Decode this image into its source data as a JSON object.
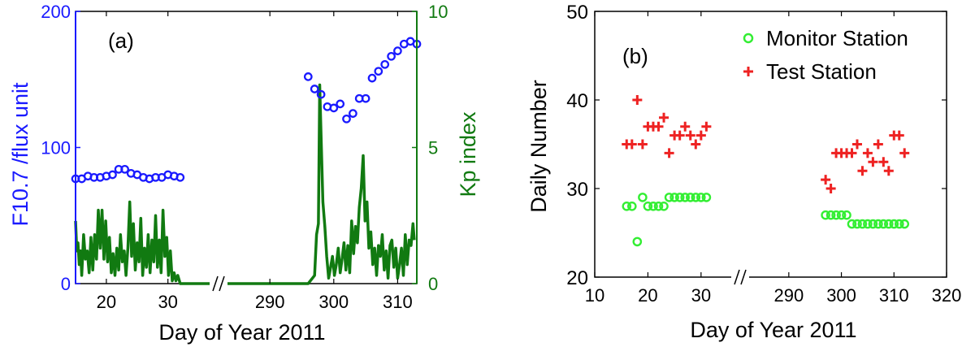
{
  "figure": {
    "colors": {
      "f107": "#1a1aff",
      "kp": "#117a11",
      "monitor": "#33ee33",
      "test": "#ee2222",
      "axis": "#000000"
    }
  },
  "chart_data": [
    {
      "type": "line",
      "panel_label": "(a)",
      "xlabel": "Day of Year 2011",
      "ylabel_left": "F10.7 /flux unit",
      "ylabel_right": "Kp index",
      "x_segments": [
        {
          "range": [
            15,
            34
          ],
          "ticks": [
            20,
            30
          ]
        },
        {
          "range": [
            284,
            313
          ],
          "ticks": [
            290,
            300,
            310
          ]
        }
      ],
      "ylim_left": [
        0,
        200
      ],
      "yticks_left": [
        "0",
        "100",
        "200"
      ],
      "ylim_right": [
        0,
        10
      ],
      "yticks_right": [
        "0",
        "5",
        "10"
      ],
      "series": [
        {
          "axis": "left",
          "style": "circles",
          "points": [
            [
              15,
              77
            ],
            [
              16,
              77
            ],
            [
              17,
              79
            ],
            [
              18,
              78
            ],
            [
              19,
              78
            ],
            [
              20,
              79
            ],
            [
              21,
              80
            ],
            [
              22,
              84
            ],
            [
              23,
              84
            ],
            [
              24,
              81
            ],
            [
              25,
              80
            ],
            [
              26,
              78
            ],
            [
              27,
              77
            ],
            [
              28,
              78
            ],
            [
              29,
              78
            ],
            [
              30,
              80
            ],
            [
              31,
              79
            ],
            [
              32,
              78
            ],
            [
              296,
              152
            ],
            [
              297,
              143
            ],
            [
              298,
              139
            ],
            [
              299,
              130
            ],
            [
              300,
              129
            ],
            [
              301,
              132
            ],
            [
              302,
              121
            ],
            [
              303,
              125
            ],
            [
              304,
              136
            ],
            [
              305,
              136
            ],
            [
              306,
              151
            ],
            [
              307,
              156
            ],
            [
              308,
              161
            ],
            [
              309,
              167
            ],
            [
              310,
              171
            ],
            [
              311,
              176
            ],
            [
              312,
              178
            ],
            [
              313,
              176
            ]
          ]
        },
        {
          "axis": "right",
          "style": "line",
          "points": [
            [
              15,
              2.3
            ],
            [
              15.2,
              1.2
            ],
            [
              15.4,
              1.5
            ],
            [
              15.6,
              0.7
            ],
            [
              15.8,
              1.2
            ],
            [
              16,
              0.3
            ],
            [
              16.3,
              1.8
            ],
            [
              16.6,
              0.9
            ],
            [
              16.9,
              1.2
            ],
            [
              17.2,
              0.4
            ],
            [
              17.5,
              1.7
            ],
            [
              17.8,
              0.5
            ],
            [
              18.1,
              1.8
            ],
            [
              18.4,
              0.9
            ],
            [
              18.7,
              2.7
            ],
            [
              19,
              1.3
            ],
            [
              19.3,
              2.7
            ],
            [
              19.6,
              0.9
            ],
            [
              19.9,
              2.3
            ],
            [
              20.2,
              0.8
            ],
            [
              20.5,
              1.7
            ],
            [
              20.8,
              0.4
            ],
            [
              21.1,
              1.1
            ],
            [
              21.4,
              0.3
            ],
            [
              21.7,
              1.3
            ],
            [
              22,
              0.5
            ],
            [
              22.3,
              1.8
            ],
            [
              22.6,
              0.8
            ],
            [
              22.9,
              1.2
            ],
            [
              23.2,
              0.3
            ],
            [
              23.5,
              1.3
            ],
            [
              23.8,
              3.0
            ],
            [
              24.1,
              1.0
            ],
            [
              24.4,
              2.2
            ],
            [
              24.7,
              0.5
            ],
            [
              25,
              1.5
            ],
            [
              25.3,
              0.8
            ],
            [
              25.6,
              2.4
            ],
            [
              25.9,
              0.3
            ],
            [
              26.2,
              1.3
            ],
            [
              26.5,
              0.6
            ],
            [
              26.8,
              1.8
            ],
            [
              27.1,
              0.4
            ],
            [
              27.4,
              1.6
            ],
            [
              27.7,
              0.8
            ],
            [
              28,
              2.5
            ],
            [
              28.3,
              0.6
            ],
            [
              28.6,
              1.6
            ],
            [
              28.9,
              0.4
            ],
            [
              29.2,
              2.7
            ],
            [
              29.5,
              1.0
            ],
            [
              29.8,
              1.7
            ],
            [
              30.1,
              0.3
            ],
            [
              30.4,
              1.2
            ],
            [
              30.7,
              0.1
            ],
            [
              31,
              0.4
            ],
            [
              31.3,
              0.1
            ],
            [
              31.6,
              0.3
            ],
            [
              32,
              0
            ],
            [
              284,
              0
            ],
            [
              296,
              0
            ],
            [
              297,
              0.3
            ],
            [
              297.3,
              1.8
            ],
            [
              297.6,
              2.2
            ],
            [
              297.8,
              7.3
            ],
            [
              298,
              5.5
            ],
            [
              298.3,
              3.0
            ],
            [
              298.6,
              2.1
            ],
            [
              298.9,
              1.0
            ],
            [
              299.2,
              0.2
            ],
            [
              299.5,
              0.6
            ],
            [
              299.8,
              1.0
            ],
            [
              300.1,
              0.3
            ],
            [
              300.4,
              0.7
            ],
            [
              300.7,
              1.3
            ],
            [
              301,
              0.4
            ],
            [
              301.3,
              0.9
            ],
            [
              301.6,
              1.5
            ],
            [
              301.9,
              0.5
            ],
            [
              302.2,
              1.4
            ],
            [
              302.5,
              0.4
            ],
            [
              302.8,
              2.3
            ],
            [
              303.1,
              1.1
            ],
            [
              303.4,
              2.1
            ],
            [
              303.7,
              1.5
            ],
            [
              304,
              2.8
            ],
            [
              304.3,
              3.5
            ],
            [
              304.6,
              4.7
            ],
            [
              304.9,
              2.3
            ],
            [
              305.2,
              3.0
            ],
            [
              305.5,
              1.3
            ],
            [
              305.8,
              1.9
            ],
            [
              306.1,
              0.7
            ],
            [
              306.4,
              1.3
            ],
            [
              306.7,
              0.3
            ],
            [
              307,
              1.4
            ],
            [
              307.3,
              1.0
            ],
            [
              307.6,
              1.8
            ],
            [
              307.9,
              0.5
            ],
            [
              308.2,
              1.2
            ],
            [
              308.5,
              0.2
            ],
            [
              308.8,
              1.4
            ],
            [
              309.1,
              1.6
            ],
            [
              309.4,
              0.6
            ],
            [
              309.7,
              1.3
            ],
            [
              310,
              0.2
            ],
            [
              310.3,
              0.7
            ],
            [
              310.6,
              1.3
            ],
            [
              310.9,
              0.3
            ],
            [
              311.2,
              1.8
            ],
            [
              311.5,
              0.7
            ],
            [
              311.8,
              1.6
            ],
            [
              312.1,
              1.4
            ],
            [
              312.4,
              2.2
            ],
            [
              312.6,
              1.6
            ]
          ]
        }
      ]
    },
    {
      "type": "scatter",
      "panel_label": "(b)",
      "xlabel": "Day of Year 2011",
      "ylabel": "Daily Number",
      "x_segments": [
        {
          "range": [
            10,
            34
          ],
          "ticks": [
            10,
            20,
            30
          ]
        },
        {
          "range": [
            284,
            320
          ],
          "ticks": [
            290,
            300,
            310,
            320
          ]
        }
      ],
      "ylim": [
        20,
        50
      ],
      "yticks": [
        "20",
        "30",
        "40",
        "50"
      ],
      "legend": {
        "position": "top-right"
      },
      "series": [
        {
          "name": "Monitor Station",
          "marker": "circle",
          "points": [
            [
              16,
              28
            ],
            [
              17,
              28
            ],
            [
              18,
              24
            ],
            [
              19,
              29
            ],
            [
              20,
              28
            ],
            [
              21,
              28
            ],
            [
              22,
              28
            ],
            [
              23,
              28
            ],
            [
              24,
              29
            ],
            [
              25,
              29
            ],
            [
              26,
              29
            ],
            [
              27,
              29
            ],
            [
              28,
              29
            ],
            [
              29,
              29
            ],
            [
              30,
              29
            ],
            [
              31,
              29
            ],
            [
              297,
              27
            ],
            [
              298,
              27
            ],
            [
              299,
              27
            ],
            [
              300,
              27
            ],
            [
              301,
              27
            ],
            [
              302,
              26
            ],
            [
              303,
              26
            ],
            [
              304,
              26
            ],
            [
              305,
              26
            ],
            [
              306,
              26
            ],
            [
              307,
              26
            ],
            [
              308,
              26
            ],
            [
              309,
              26
            ],
            [
              310,
              26
            ],
            [
              311,
              26
            ],
            [
              312,
              26
            ]
          ]
        },
        {
          "name": "Test Station",
          "marker": "plus",
          "points": [
            [
              16,
              35
            ],
            [
              17,
              35
            ],
            [
              18,
              40
            ],
            [
              19,
              35
            ],
            [
              20,
              37
            ],
            [
              21,
              37
            ],
            [
              22,
              37
            ],
            [
              23,
              38
            ],
            [
              24,
              34
            ],
            [
              25,
              36
            ],
            [
              26,
              36
            ],
            [
              27,
              37
            ],
            [
              28,
              36
            ],
            [
              29,
              35
            ],
            [
              30,
              36
            ],
            [
              31,
              37
            ],
            [
              297,
              31
            ],
            [
              298,
              30
            ],
            [
              299,
              34
            ],
            [
              300,
              34
            ],
            [
              301,
              34
            ],
            [
              302,
              34
            ],
            [
              303,
              35
            ],
            [
              304,
              32
            ],
            [
              305,
              34
            ],
            [
              306,
              33
            ],
            [
              307,
              35
            ],
            [
              308,
              33
            ],
            [
              309,
              32
            ],
            [
              310,
              36
            ],
            [
              311,
              36
            ],
            [
              312,
              34
            ]
          ]
        }
      ]
    }
  ]
}
